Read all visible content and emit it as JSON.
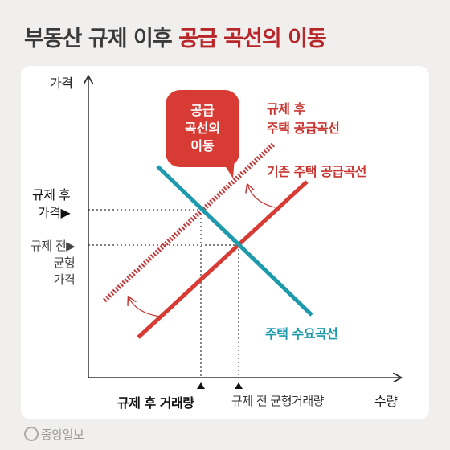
{
  "title": {
    "part1": "부동산 규제 이후 ",
    "part2": "공급 곡선의 이동"
  },
  "axes": {
    "y_label": "가격",
    "x_label": "수량"
  },
  "price_labels": {
    "after_line1": "규제 후",
    "after_line2": "가격▶",
    "before_line1": "규제 전▶",
    "before_line2": "균형",
    "before_line3": "가격"
  },
  "quantity_labels": {
    "after": "규제 후 거래량",
    "before": "규제 전 균형거래량"
  },
  "curve_labels": {
    "shifted_supply_line1": "규제 후",
    "shifted_supply_line2": "주택 공급곡선",
    "original_supply": "기존 주택 공급곡선",
    "demand": "주택 수요곡선"
  },
  "callout": "공급\n곡선의\n이동",
  "colors": {
    "supply": "#d83a34",
    "shifted_supply": "#c0393a",
    "demand": "#1e9aad",
    "title_accent": "#b8262a"
  },
  "source_logo": "중앙일보"
}
